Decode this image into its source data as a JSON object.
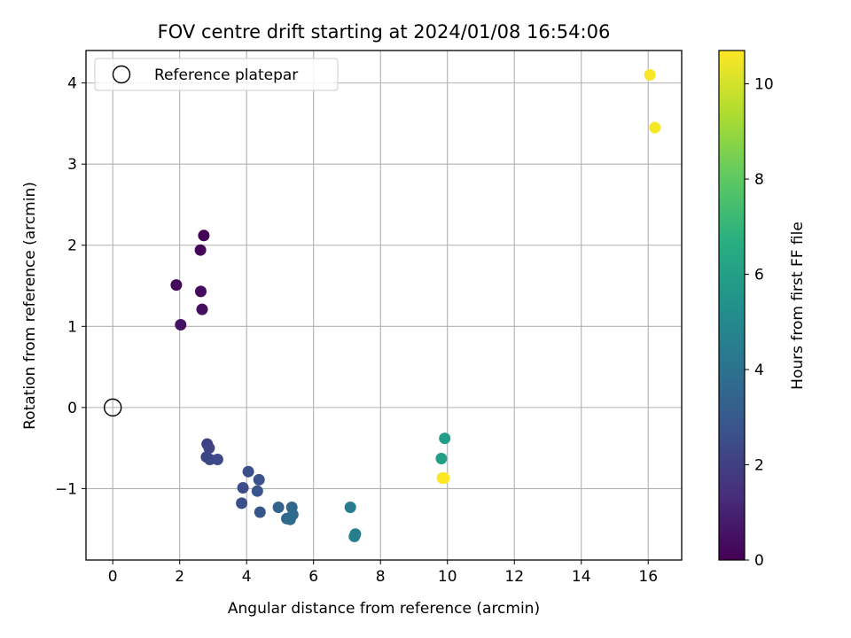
{
  "chart_data": {
    "type": "scatter",
    "title": "FOV centre drift starting at 2024/01/08 16:54:06",
    "xlabel": "Angular distance from reference (arcmin)",
    "ylabel": "Rotation from reference (arcmin)",
    "xlim": [
      -0.8,
      17.0
    ],
    "ylim": [
      -1.88,
      4.4
    ],
    "xticks": [
      0,
      2,
      4,
      6,
      8,
      10,
      12,
      14,
      16
    ],
    "yticks": [
      -1,
      0,
      1,
      2,
      3,
      4
    ],
    "xtick_labels": [
      "0",
      "2",
      "4",
      "6",
      "8",
      "10",
      "12",
      "14",
      "16"
    ],
    "ytick_labels": [
      "−1",
      "0",
      "1",
      "2",
      "3",
      "4"
    ],
    "grid": true,
    "legend": {
      "position": "upper-left",
      "entries": [
        "Reference platepar"
      ]
    },
    "reference_point": {
      "x": 0,
      "y": 0,
      "marker": "open-circle"
    },
    "colorbar": {
      "label": "Hours from first FF file",
      "colormap": "viridis",
      "range": [
        0,
        10.7
      ],
      "ticks": [
        0,
        2,
        4,
        6,
        8,
        10
      ],
      "tick_labels": [
        "0",
        "2",
        "4",
        "6",
        "8",
        "10"
      ]
    },
    "points": [
      {
        "x": 2.72,
        "y": 2.12,
        "c": 0.0
      },
      {
        "x": 2.62,
        "y": 1.94,
        "c": 0.1
      },
      {
        "x": 1.9,
        "y": 1.51,
        "c": 0.2
      },
      {
        "x": 2.63,
        "y": 1.43,
        "c": 0.3
      },
      {
        "x": 2.67,
        "y": 1.21,
        "c": 0.4
      },
      {
        "x": 2.03,
        "y": 1.02,
        "c": 0.5
      },
      {
        "x": 2.82,
        "y": -0.45,
        "c": 2.1
      },
      {
        "x": 2.88,
        "y": -0.5,
        "c": 2.2
      },
      {
        "x": 2.8,
        "y": -0.61,
        "c": 2.3
      },
      {
        "x": 2.9,
        "y": -0.64,
        "c": 2.3
      },
      {
        "x": 3.13,
        "y": -0.64,
        "c": 2.4
      },
      {
        "x": 4.05,
        "y": -0.79,
        "c": 2.6
      },
      {
        "x": 3.89,
        "y": -0.99,
        "c": 2.5
      },
      {
        "x": 4.37,
        "y": -0.89,
        "c": 2.8
      },
      {
        "x": 4.32,
        "y": -1.03,
        "c": 2.8
      },
      {
        "x": 3.85,
        "y": -1.18,
        "c": 2.6
      },
      {
        "x": 4.4,
        "y": -1.29,
        "c": 2.9
      },
      {
        "x": 4.95,
        "y": -1.23,
        "c": 3.4
      },
      {
        "x": 5.35,
        "y": -1.23,
        "c": 3.6
      },
      {
        "x": 5.38,
        "y": -1.32,
        "c": 3.7
      },
      {
        "x": 5.2,
        "y": -1.37,
        "c": 3.6
      },
      {
        "x": 5.3,
        "y": -1.38,
        "c": 3.8
      },
      {
        "x": 7.1,
        "y": -1.23,
        "c": 4.5
      },
      {
        "x": 7.25,
        "y": -1.56,
        "c": 4.6
      },
      {
        "x": 7.22,
        "y": -1.59,
        "c": 4.6
      },
      {
        "x": 9.92,
        "y": -0.38,
        "c": 5.9
      },
      {
        "x": 9.82,
        "y": -0.63,
        "c": 6.0
      },
      {
        "x": 9.85,
        "y": -0.87,
        "c": 10.7
      },
      {
        "x": 9.9,
        "y": -0.87,
        "c": 10.7
      },
      {
        "x": 16.05,
        "y": 4.1,
        "c": 10.6
      },
      {
        "x": 16.2,
        "y": 3.45,
        "c": 10.6
      }
    ]
  }
}
